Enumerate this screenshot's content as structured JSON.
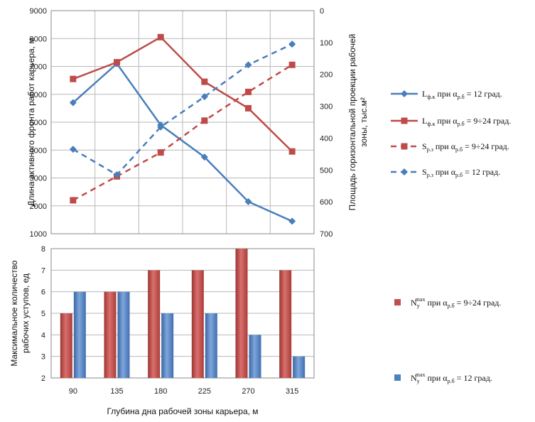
{
  "chart_data": [
    {
      "type": "line",
      "x": [
        90,
        135,
        180,
        225,
        270,
        315
      ],
      "y_left": {
        "label": "Длина активного фронта работ карьера, м",
        "lim": [
          1000,
          9000
        ],
        "ticks": [
          "1000",
          "2000",
          "3000",
          "4000",
          "5000",
          "6000",
          "7000",
          "8000",
          "9000"
        ]
      },
      "y_right": {
        "label_line1": "Площадь горизонтальной проекции рабочей",
        "label_line2": "зоны, тыс.м²",
        "lim": [
          0,
          700
        ],
        "inverted": true,
        "ticks": [
          "0",
          "100",
          "200",
          "300",
          "400",
          "500",
          "600",
          "700"
        ]
      },
      "series": [
        {
          "name": "Lф.к при αр.б = 12 град.",
          "legend": {
            "main1": "L",
            "sub1": "ф.к",
            "main2": " при α",
            "sub2": "р.б",
            "main3": " = 12 град."
          },
          "axis": "left",
          "style": "solid",
          "marker": "diamond",
          "color": "#4a7ebb",
          "values": [
            5700,
            7100,
            4900,
            3750,
            2150,
            1450
          ]
        },
        {
          "name": "Lф.к при αр.б = 9÷24 град.",
          "legend": {
            "main1": "L",
            "sub1": "ф.к",
            "main2": " при α",
            "sub2": "р.б",
            "main3": " = 9÷24 град."
          },
          "axis": "left",
          "style": "solid",
          "marker": "square",
          "color": "#be4b48",
          "values": [
            6550,
            7150,
            8050,
            6450,
            5500,
            3950
          ]
        },
        {
          "name": "Sр.з при αр.б = 9÷24 град.",
          "legend": {
            "main1": "S",
            "sub1": "р.з",
            "main2": " при α",
            "sub2": "р.б",
            "main3": " = 9÷24 град."
          },
          "axis": "right",
          "style": "dashed",
          "marker": "square",
          "color": "#be4b48",
          "values": [
            595,
            520,
            445,
            345,
            255,
            170
          ]
        },
        {
          "name": "Sр.з при αр.б = 12 град.",
          "legend": {
            "main1": "S",
            "sub1": "р.з",
            "main2": " при α",
            "sub2": "р.б",
            "main3": " = 12 град."
          },
          "axis": "right",
          "style": "dashed",
          "marker": "diamond",
          "color": "#4a7ebb",
          "values": [
            435,
            515,
            365,
            270,
            170,
            105
          ]
        }
      ]
    },
    {
      "type": "bar",
      "categories": [
        "90",
        "135",
        "180",
        "225",
        "270",
        "315"
      ],
      "xlabel": "Глубина дна рабочей зоны карьера, м",
      "ylabel_line1": "Максимальное количество",
      "ylabel_line2": "рабочих уступов, ед",
      "ylim": [
        2,
        8
      ],
      "y_ticks": [
        "2",
        "3",
        "4",
        "5",
        "6",
        "7",
        "8"
      ],
      "series": [
        {
          "name": "Nуmax при αр.б = 9÷24 град.",
          "legend": {
            "main1": "N",
            "sub1": "у",
            "sup1": "max",
            "main2": " при α",
            "sub2": "р.б",
            "main3": " = 9÷24 град."
          },
          "color": "#c0504d",
          "values": [
            5,
            6,
            7,
            7,
            8,
            7
          ]
        },
        {
          "name": "Nуmax при αр.б = 12 град.",
          "legend": {
            "main1": "N",
            "sub1": "у",
            "sup1": "max",
            "main2": " при α",
            "sub2": "р.б",
            "main3": " = 12 град."
          },
          "color": "#4f81bd",
          "values": [
            6,
            6,
            5,
            5,
            4,
            3
          ]
        }
      ]
    }
  ]
}
